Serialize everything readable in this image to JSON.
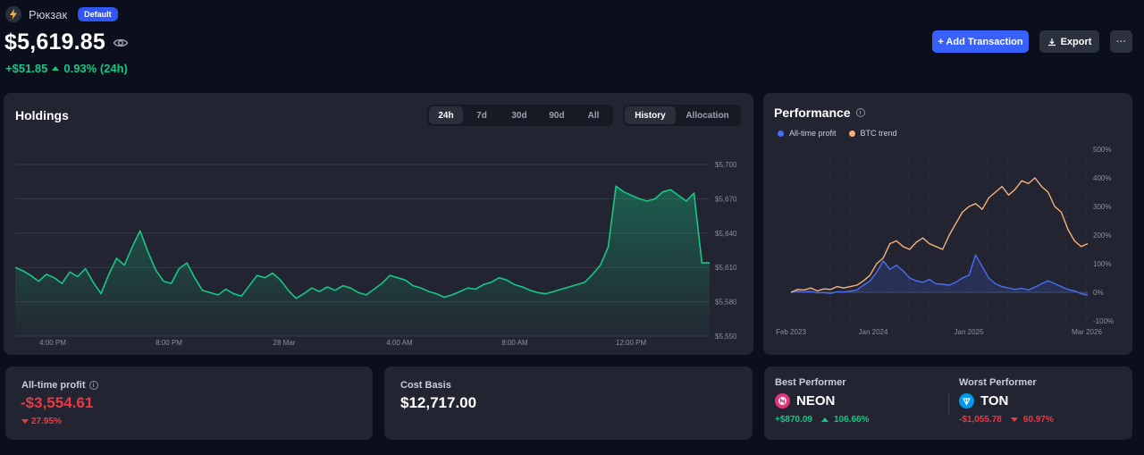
{
  "portfolio": {
    "name": "Рюкзак",
    "badge": "Default",
    "total": "$5,619.85",
    "change_abs": "+$51.85",
    "change_pct": "0.93% (24h)"
  },
  "actions": {
    "add_label": "+ Add Transaction",
    "export_label": "Export",
    "more_label": "···"
  },
  "holdings": {
    "title": "Holdings",
    "ranges": [
      "24h",
      "7d",
      "30d",
      "90d",
      "All"
    ],
    "selected_range": "24h",
    "views": [
      "History",
      "Allocation"
    ],
    "selected_view": "History",
    "y_ticks": [
      "$5,700",
      "$5,670",
      "$5,640",
      "$5,610",
      "$5,580",
      "$5,550"
    ],
    "x_ticks": [
      "4:00 PM",
      "8:00 PM",
      "28 Mar",
      "4:00 AM",
      "8:00 AM",
      "12:00 PM"
    ]
  },
  "performance": {
    "title": "Performance",
    "legend": [
      {
        "name": "All-time profit",
        "color": "#4a6cf7"
      },
      {
        "name": "BTC trend",
        "color": "#f6b17a"
      }
    ],
    "y_ticks": [
      "500%",
      "400%",
      "300%",
      "200%",
      "100%",
      "0%",
      "-100%"
    ],
    "x_ticks": [
      "Feb 2023",
      "Jan 2024",
      "Jan 2025",
      "Mar 2026"
    ]
  },
  "stats": {
    "profit_label": "All-time profit",
    "profit_value": "-$3,554.61",
    "profit_pct": "27.95%",
    "cost_label": "Cost Basis",
    "cost_value": "$12,717.00",
    "best_label": "Best Performer",
    "best_symbol": "NEON",
    "best_value": "+$870.09",
    "best_pct": "106.66%",
    "worst_label": "Worst Performer",
    "worst_symbol": "TON",
    "worst_value": "-$1,055.78",
    "worst_pct": "60.97%"
  },
  "chart_data": [
    {
      "type": "area",
      "title": "Holdings",
      "xlabel": "",
      "ylabel": "",
      "x_labels": [
        "4:00 PM",
        "8:00 PM",
        "28 Mar",
        "4:00 AM",
        "8:00 AM",
        "12:00 PM"
      ],
      "ylim": [
        5550,
        5700
      ],
      "grid": true,
      "color": "#16c784",
      "values": [
        5610,
        5607,
        5603,
        5598,
        5604,
        5601,
        5596,
        5606,
        5602,
        5609,
        5597,
        5587,
        5604,
        5618,
        5612,
        5628,
        5642,
        5624,
        5608,
        5598,
        5596,
        5609,
        5614,
        5601,
        5590,
        5588,
        5586,
        5591,
        5587,
        5585,
        5594,
        5603,
        5601,
        5605,
        5599,
        5590,
        5583,
        5587,
        5592,
        5589,
        5593,
        5590,
        5594,
        5592,
        5588,
        5586,
        5591,
        5596,
        5603,
        5601,
        5599,
        5594,
        5592,
        5589,
        5587,
        5584,
        5586,
        5589,
        5592,
        5591,
        5595,
        5597,
        5601,
        5599,
        5595,
        5593,
        5590,
        5588,
        5587,
        5589,
        5591,
        5593,
        5595,
        5597,
        5604,
        5612,
        5628,
        5681,
        5676,
        5673,
        5670,
        5668,
        5670,
        5676,
        5678,
        5673,
        5668,
        5675,
        5614,
        5614
      ]
    },
    {
      "type": "line",
      "title": "Performance",
      "x_labels": [
        "Feb 2023",
        "Jan 2024",
        "Jan 2025",
        "Mar 2026"
      ],
      "ylim": [
        -100,
        500
      ],
      "series": [
        {
          "name": "All-time profit",
          "color": "#4a6cf7",
          "values": [
            0,
            4,
            1,
            3,
            -2,
            -1,
            -4,
            2,
            1,
            4,
            8,
            25,
            40,
            70,
            110,
            80,
            95,
            75,
            50,
            40,
            35,
            45,
            30,
            28,
            25,
            35,
            50,
            60,
            130,
            90,
            50,
            30,
            20,
            15,
            10,
            14,
            8,
            18,
            30,
            40,
            30,
            20,
            10,
            5,
            -5,
            -10
          ]
        },
        {
          "name": "BTC trend",
          "color": "#f6b17a",
          "values": [
            0,
            10,
            8,
            15,
            5,
            12,
            10,
            20,
            15,
            20,
            25,
            40,
            60,
            100,
            120,
            170,
            180,
            160,
            150,
            175,
            190,
            170,
            160,
            150,
            200,
            240,
            280,
            300,
            310,
            290,
            330,
            350,
            370,
            340,
            360,
            390,
            380,
            400,
            370,
            350,
            300,
            280,
            220,
            180,
            160,
            170
          ]
        }
      ]
    }
  ]
}
